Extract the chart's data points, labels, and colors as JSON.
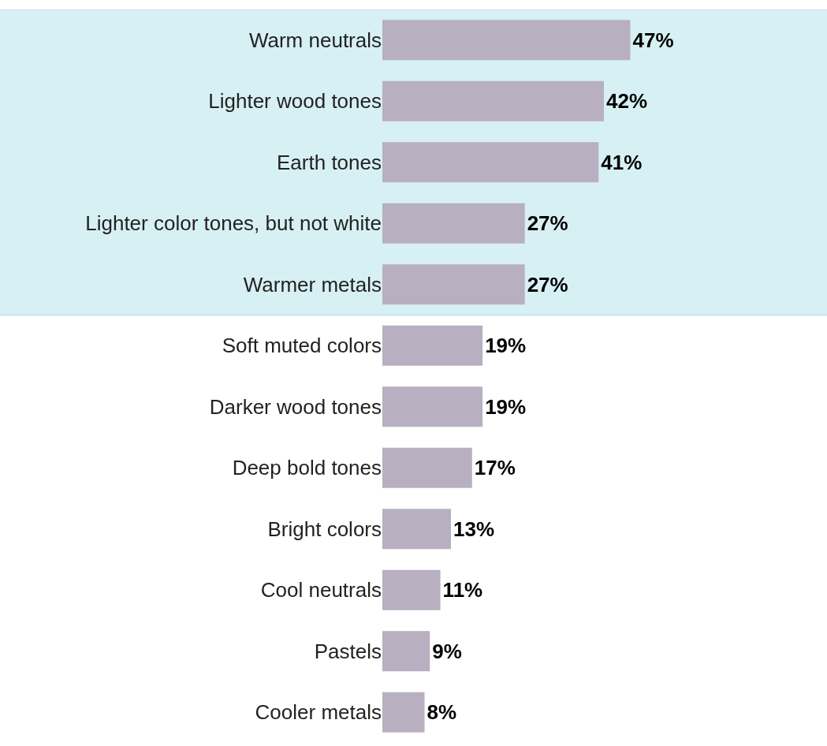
{
  "chart_data": {
    "type": "bar",
    "orientation": "horizontal",
    "categories": [
      "Warm neutrals",
      "Lighter wood tones",
      "Earth tones",
      "Lighter color tones, but not white",
      "Warmer metals",
      "Soft muted colors",
      "Darker wood tones",
      "Deep bold tones",
      "Bright colors",
      "Cool neutrals",
      "Pastels",
      "Cooler metals"
    ],
    "values": [
      47,
      42,
      41,
      27,
      27,
      19,
      19,
      17,
      13,
      11,
      9,
      8
    ],
    "value_labels": [
      "47%",
      "42%",
      "41%",
      "27%",
      "27%",
      "19%",
      "19%",
      "17%",
      "13%",
      "11%",
      "9%",
      "8%"
    ],
    "color": "#b8afc0",
    "xlim": [
      0,
      84
    ],
    "tick_labels": "y",
    "bands": [
      {
        "axis": "y",
        "from": "Warm neutrals",
        "to": "Warmer metals",
        "color": "#d7f0f4"
      }
    ]
  }
}
